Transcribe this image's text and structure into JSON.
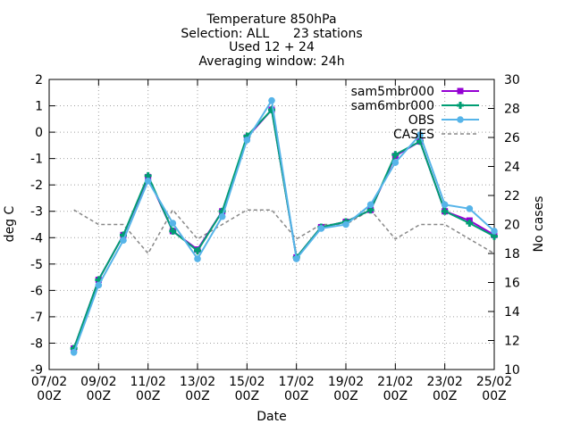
{
  "chart_data": {
    "type": "line",
    "title_lines": [
      "Temperature 850hPa",
      "Selection: ALL      23 stations",
      "Used 12 + 24",
      "Averaging window: 24h"
    ],
    "xlabel": "Date",
    "ylabel": "deg C",
    "y2label": "No cases",
    "xlim": [
      0,
      18
    ],
    "ylim": [
      -9,
      2
    ],
    "y2lim": [
      10,
      30
    ],
    "grid": true,
    "legend_position": "top-right",
    "x_tick_labels": [
      {
        "x": 0,
        "line1": "07/02",
        "line2": "00Z"
      },
      {
        "x": 2,
        "line1": "09/02",
        "line2": "00Z"
      },
      {
        "x": 4,
        "line1": "11/02",
        "line2": "00Z"
      },
      {
        "x": 6,
        "line1": "13/02",
        "line2": "00Z"
      },
      {
        "x": 8,
        "line1": "15/02",
        "line2": "00Z"
      },
      {
        "x": 10,
        "line1": "17/02",
        "line2": "00Z"
      },
      {
        "x": 12,
        "line1": "19/02",
        "line2": "00Z"
      },
      {
        "x": 14,
        "line1": "21/02",
        "line2": "00Z"
      },
      {
        "x": 16,
        "line1": "23/02",
        "line2": "00Z"
      },
      {
        "x": 18,
        "line1": "25/02",
        "line2": "00Z"
      }
    ],
    "y_ticks": [
      2,
      1,
      0,
      -1,
      -2,
      -3,
      -4,
      -5,
      -6,
      -7,
      -8,
      -9
    ],
    "y2_ticks": [
      30,
      28,
      26,
      24,
      22,
      20,
      18,
      16,
      14,
      12,
      10
    ],
    "x": [
      1,
      2,
      3,
      4,
      5,
      6,
      7,
      8,
      9,
      10,
      11,
      12,
      13,
      14,
      15,
      16,
      17,
      18
    ],
    "series": [
      {
        "name": "sam5mbr000",
        "axis": "y1",
        "color": "#9400d3",
        "marker": "square",
        "dashed": false,
        "values": [
          -8.2,
          -5.6,
          -3.9,
          -1.7,
          -3.75,
          -4.45,
          -3.0,
          -0.2,
          0.85,
          -4.75,
          -3.6,
          -3.4,
          -2.95,
          -0.9,
          -0.35,
          -3.0,
          -3.35,
          -3.9
        ]
      },
      {
        "name": "sam6mbr000",
        "axis": "y1",
        "color": "#009e73",
        "marker": "plus",
        "dashed": false,
        "values": [
          -8.2,
          -5.6,
          -3.9,
          -1.65,
          -3.75,
          -4.5,
          -3.0,
          -0.15,
          0.85,
          -4.75,
          -3.6,
          -3.4,
          -2.95,
          -0.85,
          -0.35,
          -3.0,
          -3.45,
          -3.95
        ]
      },
      {
        "name": "OBS",
        "axis": "y1",
        "color": "#56b4e9",
        "marker": "circle",
        "dashed": false,
        "values": [
          -8.35,
          -5.8,
          -4.1,
          -1.85,
          -3.45,
          -4.8,
          -3.2,
          -0.3,
          1.2,
          -4.8,
          -3.65,
          -3.5,
          -2.75,
          -1.15,
          -0.1,
          -2.75,
          -2.9,
          -3.75
        ]
      },
      {
        "name": "CASES",
        "axis": "y2",
        "color": "#888888",
        "marker": "none",
        "dashed": true,
        "values": [
          21,
          20,
          20,
          18,
          21,
          19,
          20,
          21,
          21,
          19,
          20,
          20,
          21,
          19,
          20,
          20,
          19,
          18
        ]
      }
    ]
  }
}
